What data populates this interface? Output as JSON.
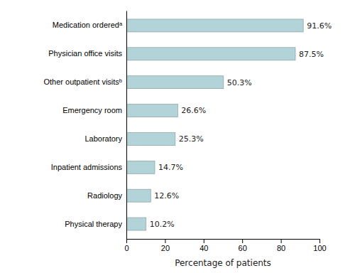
{
  "chart_data": {
    "type": "bar",
    "orientation": "horizontal",
    "categories": [
      "Physical therapy",
      "Radiology",
      "Inpatient admissions",
      "Laboratory",
      "Emergency room",
      "Other outpatient visitsᵇ",
      "Physician office visits",
      "Medication orderedᵃ"
    ],
    "values": [
      10.2,
      12.6,
      14.7,
      25.3,
      26.6,
      50.3,
      87.5,
      91.6
    ],
    "value_labels": [
      "10.2%",
      "12.6%",
      "14.7%",
      "25.3%",
      "26.6%",
      "50.3%",
      "87.5%",
      "91.6%"
    ],
    "data_labels": true,
    "color": "#b2d3d8",
    "xlabel": "Percentage of patients",
    "xlim": [
      0,
      100
    ],
    "xticks": [
      0,
      20,
      40,
      60,
      80,
      100
    ],
    "grid": false
  }
}
